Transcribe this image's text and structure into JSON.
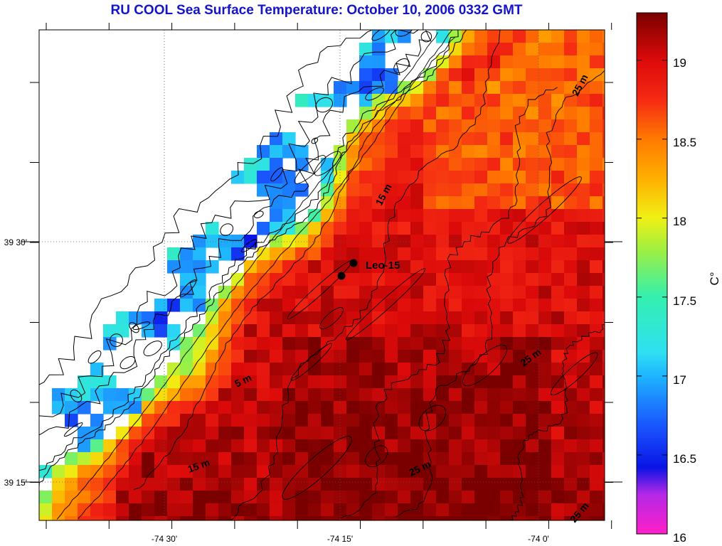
{
  "title": "RU COOL  Sea Surface Temperature:  October 10, 2006 0332 GMT",
  "map": {
    "lon_ticks": [
      "-74 30'",
      "-74 15'",
      "-74 0'"
    ],
    "lat_ticks": [
      "39 30'",
      "39 15'"
    ],
    "station_label": "Leo-15",
    "contour_labels": [
      "5 m",
      "15 m",
      "15 m",
      "25 m",
      "25 m",
      "25 m",
      "25 m"
    ]
  },
  "colorbar": {
    "unit": "C°",
    "min": 16,
    "max": 19.3,
    "ticks": [
      "19",
      "18.5",
      "18",
      "17.5",
      "17",
      "16.5",
      "16"
    ],
    "tick_values": [
      19,
      18.5,
      18,
      17.5,
      17,
      16.5,
      16
    ],
    "stops": [
      {
        "v": 16.0,
        "c": "#ff1fc8"
      },
      {
        "v": 16.25,
        "c": "#b428e6"
      },
      {
        "v": 16.42,
        "c": "#0a14e6"
      },
      {
        "v": 16.7,
        "c": "#1a5aff"
      },
      {
        "v": 17.0,
        "c": "#1eb4ff"
      },
      {
        "v": 17.15,
        "c": "#2ee0f0"
      },
      {
        "v": 17.5,
        "c": "#34f0b0"
      },
      {
        "v": 17.8,
        "c": "#9ef040"
      },
      {
        "v": 18.0,
        "c": "#f0f014"
      },
      {
        "v": 18.25,
        "c": "#ffb000"
      },
      {
        "v": 18.5,
        "c": "#ff7a00"
      },
      {
        "v": 18.75,
        "c": "#f52a14"
      },
      {
        "v": 19.0,
        "c": "#dc0a0a"
      },
      {
        "v": 19.3,
        "c": "#7a0000"
      }
    ]
  }
}
